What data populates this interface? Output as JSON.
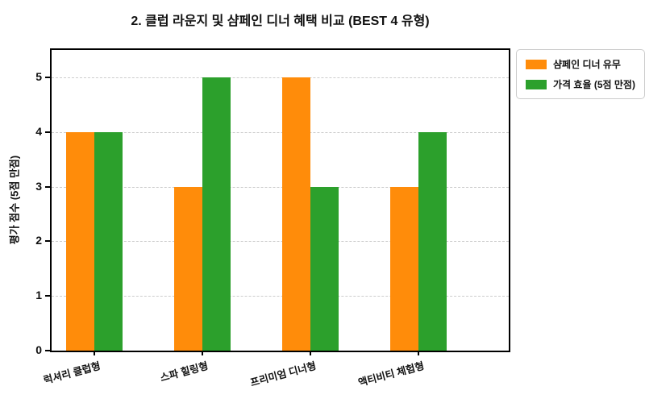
{
  "title": "2. 클럽 라운지 및 샴페인 디너 혜택 비교 (BEST 4 유형)",
  "chart_data": {
    "type": "bar",
    "title": "2. 클럽 라운지 및 샴페인 디너 혜택 비교 (BEST 4 유형)",
    "xlabel": "",
    "ylabel": "평가 점수 (5점 만점)",
    "categories": [
      "럭셔리 클럽형",
      "스파 힐링형",
      "프리미엄 디너형",
      "액티비티 체험형"
    ],
    "series": [
      {
        "name": "샴페인 디너 유무",
        "color": "#ff8c0a",
        "values": [
          4,
          3,
          5,
          3
        ]
      },
      {
        "name": "가격 효율 (5점 만점)",
        "color": "#2ca02c",
        "values": [
          4,
          5,
          3,
          4
        ]
      }
    ],
    "ylim": [
      0,
      5.5
    ],
    "yticks": [
      0,
      1,
      2,
      3,
      4,
      5
    ],
    "grid": "horizontal-dashed",
    "gridline_color": "#cccccc",
    "legend_position": "outside-top-right",
    "tick_label_rotation_deg": 15
  }
}
